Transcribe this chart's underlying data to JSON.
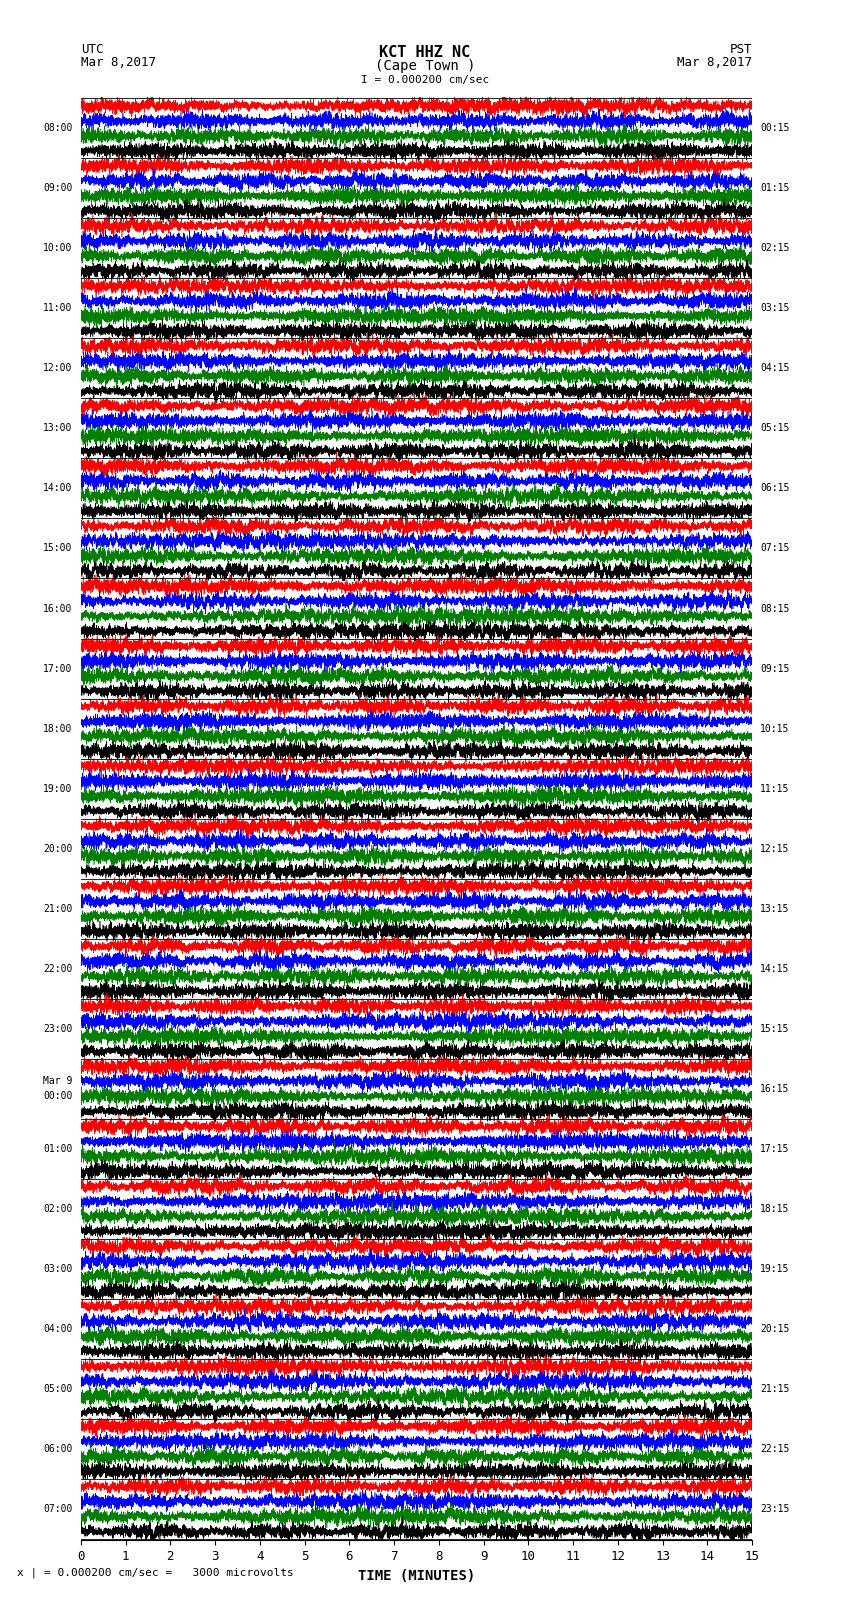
{
  "title_line1": "KCT HHZ NC",
  "title_line2": "(Cape Town )",
  "scale_text": "I = 0.000200 cm/sec",
  "bottom_scale_text": "x | = 0.000200 cm/sec =   3000 microvolts",
  "utc_label": "UTC",
  "utc_date": "Mar 8,2017",
  "pst_label": "PST",
  "pst_date": "Mar 8,2017",
  "xlabel": "TIME (MINUTES)",
  "left_times": [
    "08:00",
    "09:00",
    "10:00",
    "11:00",
    "12:00",
    "13:00",
    "14:00",
    "15:00",
    "16:00",
    "17:00",
    "18:00",
    "19:00",
    "20:00",
    "21:00",
    "22:00",
    "23:00",
    "Mar 9\n00:00",
    "01:00",
    "02:00",
    "03:00",
    "04:00",
    "05:00",
    "06:00",
    "07:00"
  ],
  "right_times": [
    "00:15",
    "01:15",
    "02:15",
    "03:15",
    "04:15",
    "05:15",
    "06:15",
    "07:15",
    "08:15",
    "09:15",
    "10:15",
    "11:15",
    "12:15",
    "13:15",
    "14:15",
    "15:15",
    "16:15",
    "17:15",
    "18:15",
    "19:15",
    "20:15",
    "21:15",
    "22:15",
    "23:15"
  ],
  "n_traces": 24,
  "n_points": 9000,
  "time_min": 0,
  "time_max": 15,
  "sub_colors": [
    "red",
    "blue",
    "green",
    "black"
  ],
  "bg_color": "white",
  "seed": 42,
  "sub_rows": 4,
  "sub_amplitude": 0.45,
  "linewidth": 0.4
}
